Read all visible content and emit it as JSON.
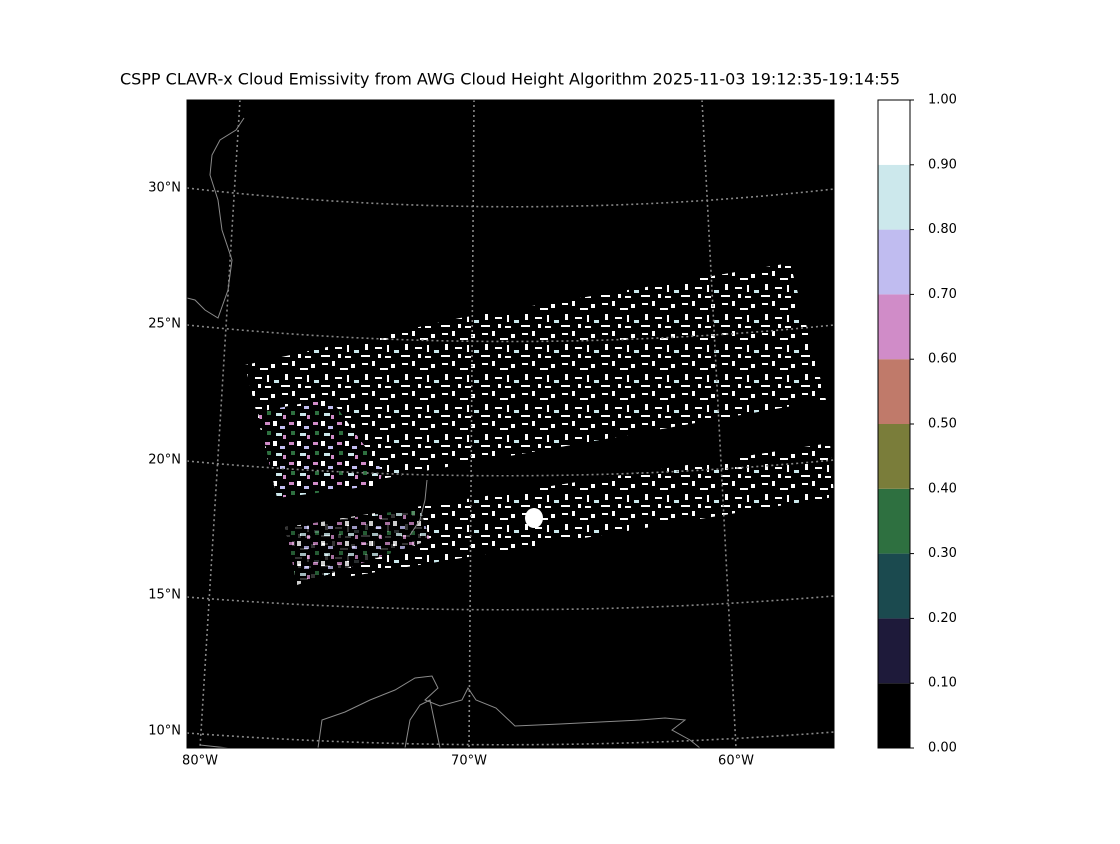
{
  "title": "CSPP CLAVR-x Cloud Emissivity from AWG Cloud Height Algorithm 2025-11-03 19:12:35-19:14:55",
  "map": {
    "lat_labels": [
      "30°N",
      "25°N",
      "20°N",
      "15°N",
      "10°N"
    ],
    "lon_labels": [
      "80°W",
      "70°W",
      "60°W"
    ]
  },
  "colorbar": {
    "lim": [
      0,
      1
    ],
    "ticks": [
      {
        "value": 0,
        "label": "0.00"
      },
      {
        "value": 0.1,
        "label": "0.10"
      },
      {
        "value": 0.2,
        "label": "0.20"
      },
      {
        "value": 0.3,
        "label": "0.30"
      },
      {
        "value": 0.4,
        "label": "0.40"
      },
      {
        "value": 0.5,
        "label": "0.50"
      },
      {
        "value": 0.6,
        "label": "0.60"
      },
      {
        "value": 0.7,
        "label": "0.70"
      },
      {
        "value": 0.8,
        "label": "0.80"
      },
      {
        "value": 0.9,
        "label": "0.90"
      },
      {
        "value": 1,
        "label": "1.00"
      }
    ],
    "colors": [
      "#000000",
      "#1e1a3a",
      "#1b4a4f",
      "#2e7040",
      "#7a7d3a",
      "#c07a6a",
      "#d08cc8",
      "#c0bcf0",
      "#cce8ec",
      "#ffffff"
    ]
  }
}
